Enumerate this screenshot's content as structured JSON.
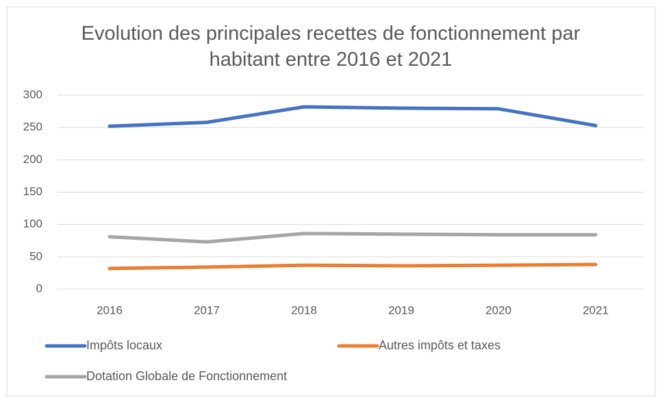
{
  "chart_data": {
    "type": "line",
    "title": "Evolution des principales recettes de fonctionnement par habitant entre 2016 et 2021",
    "categories": [
      "2016",
      "2017",
      "2018",
      "2019",
      "2020",
      "2021"
    ],
    "series": [
      {
        "name": "Impôts locaux",
        "color": "#4472c4",
        "values": [
          252,
          258,
          282,
          280,
          279,
          253
        ]
      },
      {
        "name": "Autres impôts et taxes",
        "color": "#ed7d31",
        "values": [
          32,
          34,
          37,
          36,
          37,
          38
        ]
      },
      {
        "name": "Dotation Globale de Fonctionnement",
        "color": "#a5a5a5",
        "values": [
          81,
          73,
          86,
          85,
          84,
          84
        ]
      }
    ],
    "ylim": [
      0,
      300
    ],
    "yticks": [
      0,
      50,
      100,
      150,
      200,
      250,
      300
    ],
    "grid": true,
    "legend": "bottom"
  }
}
